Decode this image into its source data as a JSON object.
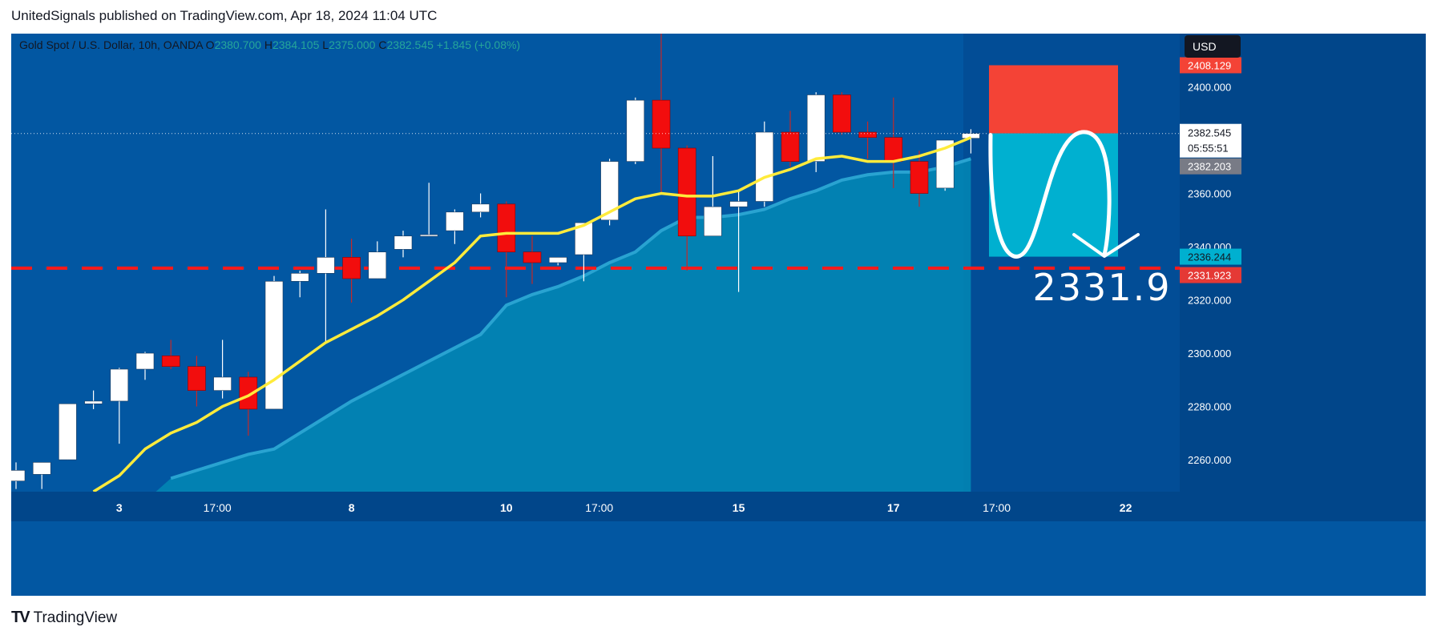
{
  "header": {
    "published": "UnitedSignals published on TradingView.com, Apr 18, 2024 11:04 UTC"
  },
  "legend": {
    "symbol": "Gold Spot / U.S. Dollar, 10h, OANDA",
    "o_label": "O",
    "o_value": "2380.700",
    "h_label": "H",
    "h_value": "2384.105",
    "l_label": "L",
    "l_value": "2375.000",
    "c_label": "C",
    "c_value": "2382.545",
    "change": "+1.845 (+0.08%)"
  },
  "currency_button": "USD",
  "price_labels": {
    "current": "2382.545",
    "countdown": "05:55:51",
    "ma": "2382.203",
    "stop": "2408.129",
    "target_box": "2336.244",
    "dashed": "2331.923"
  },
  "target_annotation": "2331.9",
  "brand": "TradingView",
  "colors": {
    "background": "#0257a2",
    "axis_bg": "#01468a",
    "bull": "#ffffff",
    "bear": "#f20d0d",
    "ma_line": "#ffeb3b",
    "area_fill": "#0288b5",
    "area_line": "#29a3d1",
    "stop_zone": "#f44336",
    "target_zone": "#00b0d0",
    "dashed_level": "#ff1a1a"
  },
  "chart_data": {
    "type": "candlestick",
    "symbol": "Gold Spot / U.S. Dollar",
    "interval": "10h",
    "ylim": [
      2248,
      2420
    ],
    "y_ticks": [
      2260,
      2280,
      2300,
      2320,
      2340,
      2360,
      2400
    ],
    "y_tick_labels": [
      "2260.000",
      "2280.000",
      "2300.000",
      "2320.000",
      "2340.000",
      "2360.000",
      "2400.000"
    ],
    "x_tick_labels": [
      {
        "label": "3",
        "bar": 4
      },
      {
        "label": "17:00",
        "bar": 7.8
      },
      {
        "label": "8",
        "bar": 13
      },
      {
        "label": "10",
        "bar": 19
      },
      {
        "label": "17:00",
        "bar": 22.6
      },
      {
        "label": "15",
        "bar": 28
      },
      {
        "label": "17",
        "bar": 34
      },
      {
        "label": "17:00",
        "bar": 38
      },
      {
        "label": "22",
        "bar": 43
      }
    ],
    "candles": [
      {
        "o": 2252.0,
        "h": 2259.0,
        "l": 2249.0,
        "c": 2256.0
      },
      {
        "o": 2254.5,
        "h": 2259.0,
        "l": 2249.0,
        "c": 2259.0
      },
      {
        "o": 2260.0,
        "h": 2281.0,
        "l": 2260.0,
        "c": 2281.0
      },
      {
        "o": 2281.0,
        "h": 2286.0,
        "l": 2279.0,
        "c": 2282.0
      },
      {
        "o": 2282.0,
        "h": 2294.5,
        "l": 2266.0,
        "c": 2294.0
      },
      {
        "o": 2294.0,
        "h": 2300.5,
        "l": 2290.0,
        "c": 2300.0
      },
      {
        "o": 2299.0,
        "h": 2305.0,
        "l": 2294.0,
        "c": 2295.0
      },
      {
        "o": 2295.0,
        "h": 2299.0,
        "l": 2280.0,
        "c": 2286.0
      },
      {
        "o": 2286.0,
        "h": 2305.0,
        "l": 2283.0,
        "c": 2291.0
      },
      {
        "o": 2291.0,
        "h": 2293.0,
        "l": 2269.0,
        "c": 2279.0
      },
      {
        "o": 2279.0,
        "h": 2329.0,
        "l": 2279.0,
        "c": 2327.0
      },
      {
        "o": 2327.0,
        "h": 2331.0,
        "l": 2321.0,
        "c": 2330.0
      },
      {
        "o": 2330.0,
        "h": 2354.0,
        "l": 2304.0,
        "c": 2336.0
      },
      {
        "o": 2336.0,
        "h": 2343.0,
        "l": 2319.0,
        "c": 2328.0
      },
      {
        "o": 2328.0,
        "h": 2342.0,
        "l": 2328.0,
        "c": 2338.0
      },
      {
        "o": 2339.0,
        "h": 2346.0,
        "l": 2336.0,
        "c": 2344.0
      },
      {
        "o": 2344.0,
        "h": 2364.0,
        "l": 2344.0,
        "c": 2344.5
      },
      {
        "o": 2346.0,
        "h": 2354.0,
        "l": 2341.0,
        "c": 2353.0
      },
      {
        "o": 2353.0,
        "h": 2360.0,
        "l": 2351.0,
        "c": 2356.0
      },
      {
        "o": 2356.0,
        "h": 2357.0,
        "l": 2321.0,
        "c": 2338.0
      },
      {
        "o": 2338.0,
        "h": 2344.0,
        "l": 2326.0,
        "c": 2334.0
      },
      {
        "o": 2334.0,
        "h": 2336.0,
        "l": 2333.0,
        "c": 2336.0
      },
      {
        "o": 2337.0,
        "h": 2349.0,
        "l": 2327.0,
        "c": 2349.0
      },
      {
        "o": 2350.0,
        "h": 2373.0,
        "l": 2348.0,
        "c": 2372.0
      },
      {
        "o": 2372.0,
        "h": 2396.0,
        "l": 2371.0,
        "c": 2395.0
      },
      {
        "o": 2395.0,
        "h": 2431.0,
        "l": 2360.0,
        "c": 2377.0
      },
      {
        "o": 2377.0,
        "h": 2378.0,
        "l": 2331.0,
        "c": 2344.0
      },
      {
        "o": 2344.0,
        "h": 2374.0,
        "l": 2344.0,
        "c": 2355.0
      },
      {
        "o": 2355.0,
        "h": 2361.0,
        "l": 2323.0,
        "c": 2357.0
      },
      {
        "o": 2357.0,
        "h": 2387.0,
        "l": 2355.0,
        "c": 2383.0
      },
      {
        "o": 2383.0,
        "h": 2391.0,
        "l": 2370.0,
        "c": 2372.0
      },
      {
        "o": 2372.0,
        "h": 2398.0,
        "l": 2368.0,
        "c": 2397.0
      },
      {
        "o": 2397.0,
        "h": 2398.0,
        "l": 2382.0,
        "c": 2383.0
      },
      {
        "o": 2383.0,
        "h": 2387.0,
        "l": 2373.0,
        "c": 2381.0
      },
      {
        "o": 2381.0,
        "h": 2396.0,
        "l": 2362.0,
        "c": 2372.0
      },
      {
        "o": 2372.0,
        "h": 2376.0,
        "l": 2355.0,
        "c": 2360.0
      },
      {
        "o": 2362.0,
        "h": 2380.0,
        "l": 2361.0,
        "c": 2380.0
      },
      {
        "o": 2380.7,
        "h": 2384.1,
        "l": 2375.0,
        "c": 2382.5
      }
    ],
    "ma_line": [
      null,
      null,
      null,
      2248,
      2254,
      2264,
      2270,
      2274,
      2280,
      2284,
      2290,
      2297,
      2304,
      2309,
      2314,
      2320,
      2327,
      2334,
      2344,
      2345,
      2345,
      2345,
      2348,
      2353,
      2358,
      2360,
      2359,
      2359,
      2361,
      2366,
      2369,
      2373,
      2374,
      2372,
      2372,
      2374,
      2377,
      2381
    ],
    "area_line": [
      null,
      null,
      null,
      null,
      null,
      null,
      2253,
      2256,
      2259,
      2262,
      2264,
      2270,
      2276,
      2282,
      2287,
      2292,
      2297,
      2302,
      2307,
      2318,
      2322,
      2325,
      2329,
      2334,
      2338,
      2346,
      2351,
      2351,
      2352,
      2354,
      2358,
      2361,
      2365,
      2367,
      2368,
      2368,
      2370,
      2373
    ],
    "stop_zone": [
      2382.545,
      2408.129
    ],
    "target_zone": [
      2336.244,
      2382.545
    ],
    "dashed_level": 2331.923,
    "target_label": "2331.9"
  }
}
